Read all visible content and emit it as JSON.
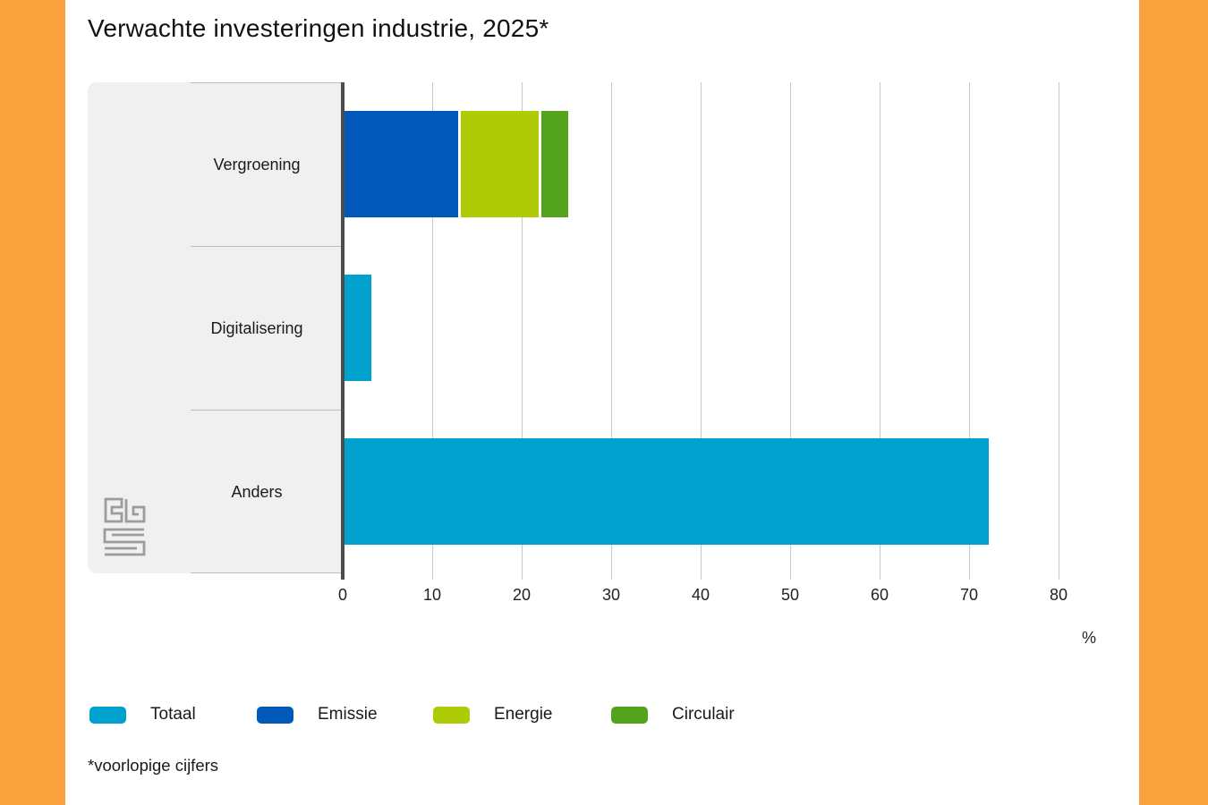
{
  "frame": {
    "side_band_color": "#f9a13c",
    "background_color": "#ffffff",
    "panel_color": "#f0f0f0"
  },
  "chart_data": {
    "type": "bar",
    "orientation": "horizontal",
    "title": "Verwachte investeringen industrie, 2025*",
    "unit_label": "%",
    "categories": [
      "Vergroening",
      "Digitalisering",
      "Anders"
    ],
    "series": [
      {
        "name": "Totaal",
        "color": "#00a1cd",
        "values": [
          null,
          3,
          72
        ]
      },
      {
        "name": "Emissie",
        "color": "#0058b8",
        "values": [
          13,
          null,
          null
        ]
      },
      {
        "name": "Energie",
        "color": "#afcb05",
        "values": [
          9,
          null,
          null
        ]
      },
      {
        "name": "Circulair",
        "color": "#53a31d",
        "values": [
          3,
          null,
          null
        ]
      }
    ],
    "x_ticks": [
      0,
      10,
      20,
      30,
      40,
      50,
      60,
      70,
      80
    ],
    "xlim": [
      0,
      85
    ],
    "grid": "vertical-only",
    "legend_position": "bottom",
    "stacked": true
  },
  "footnote": "*voorlopige cijfers",
  "icons": {
    "logo": "cbs-logo"
  }
}
